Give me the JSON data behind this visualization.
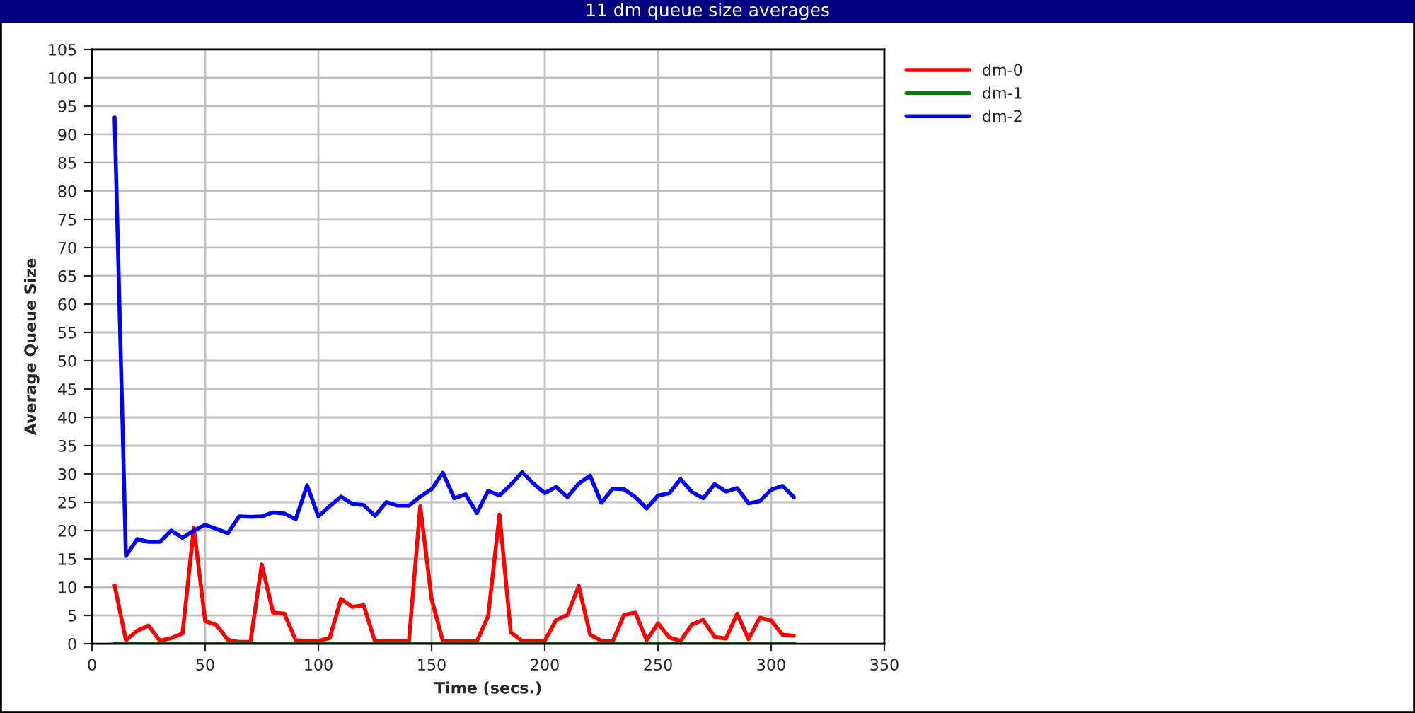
{
  "chart_data": {
    "type": "line",
    "title": "11 dm queue size averages",
    "xlabel": "Time (secs.)",
    "ylabel": "Average Queue Size",
    "x": [
      10,
      15,
      20,
      25,
      30,
      35,
      40,
      45,
      50,
      55,
      60,
      65,
      70,
      75,
      80,
      85,
      90,
      95,
      100,
      105,
      110,
      115,
      120,
      125,
      130,
      135,
      140,
      145,
      150,
      155,
      160,
      165,
      170,
      175,
      180,
      185,
      190,
      195,
      200,
      205,
      210,
      215,
      220,
      225,
      230,
      235,
      240,
      245,
      250,
      255,
      260,
      265,
      270,
      275,
      280,
      285,
      290,
      295,
      300,
      305,
      310
    ],
    "series": [
      {
        "name": "dm-0",
        "color": "#ff0000",
        "values": [
          10.3,
          0.6,
          2.3,
          3.2,
          0.5,
          1,
          1.8,
          20.5,
          4,
          3.3,
          0.7,
          0.3,
          0.3,
          14,
          5.5,
          5.3,
          0.6,
          0.5,
          0.5,
          1,
          7.9,
          6.5,
          6.8,
          0.4,
          0.5,
          0.5,
          0.5,
          24.3,
          7.9,
          0.4,
          0.4,
          0.4,
          0.4,
          4.9,
          22.8,
          2,
          0.5,
          0.5,
          0.5,
          4.2,
          5.1,
          10.2,
          1.6,
          0.5,
          0.4,
          5.1,
          5.5,
          0.6,
          3.6,
          1.1,
          0.5,
          3.4,
          4.2,
          1.2,
          0.9,
          5.3,
          0.8,
          4.6,
          4.1,
          1.6,
          1.4
        ]
      },
      {
        "name": "dm-1",
        "color": "#008000",
        "values": [
          0,
          0,
          0,
          0,
          0,
          0,
          0,
          0,
          0,
          0,
          0,
          0,
          0,
          0,
          0,
          0,
          0,
          0,
          0,
          0,
          0,
          0,
          0,
          0,
          0,
          0,
          0,
          0,
          0,
          0,
          0,
          0,
          0,
          0,
          0,
          0,
          0,
          0,
          0,
          0,
          0,
          0,
          0,
          0,
          0,
          0,
          0,
          0,
          0,
          0,
          0,
          0,
          0,
          0,
          0,
          0,
          0,
          0,
          0,
          0,
          0
        ]
      },
      {
        "name": "dm-2",
        "color": "#0000ff",
        "values": [
          93,
          15.5,
          18.5,
          18,
          18,
          20,
          18.7,
          20,
          21,
          20.3,
          19.5,
          22.5,
          22.4,
          22.5,
          23.2,
          23,
          22,
          28,
          22.5,
          24.3,
          26,
          24.7,
          24.5,
          22.6,
          25,
          24.4,
          24.4,
          26,
          27.3,
          30.2,
          25.7,
          26.4,
          23.1,
          27,
          26.2,
          28.1,
          30.3,
          28.3,
          26.6,
          27.7,
          25.9,
          28.3,
          29.7,
          24.9,
          27.4,
          27.3,
          25.9,
          23.9,
          26.2,
          26.6,
          29.1,
          26.8,
          25.7,
          28.2,
          26.9,
          27.5,
          24.8,
          25.2,
          27.2,
          27.9,
          25.9
        ]
      }
    ],
    "xlim": [
      0,
      350
    ],
    "xticks": [
      0,
      50,
      100,
      150,
      200,
      250,
      300,
      350
    ],
    "ylim": [
      0,
      105
    ],
    "yticks": [
      0,
      5,
      10,
      15,
      20,
      25,
      30,
      35,
      40,
      45,
      50,
      55,
      60,
      65,
      70,
      75,
      80,
      85,
      90,
      95,
      100,
      105
    ],
    "grid": true,
    "legend": "top right",
    "marker": "none",
    "line_style": "solid"
  }
}
